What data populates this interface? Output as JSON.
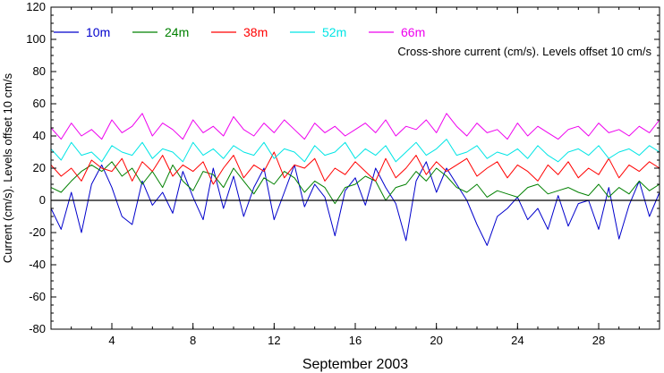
{
  "chart_data": {
    "type": "line",
    "xlabel": "September 2003",
    "ylabel": "Current (cm/s). Levels offset 10 cm/s",
    "annotation": "Cross-shore current (cm/s). Levels offset 10 cm/s",
    "xlim": [
      1,
      31
    ],
    "ylim": [
      -80,
      120
    ],
    "x_ticks": [
      4,
      8,
      12,
      16,
      20,
      24,
      28
    ],
    "x_tick_labels": [
      "4",
      "8",
      "12",
      "16",
      "20",
      "24",
      "28"
    ],
    "y_ticks": [
      -80,
      -60,
      -40,
      -20,
      0,
      20,
      40,
      60,
      80,
      100,
      120
    ],
    "y_tick_labels": [
      "-80",
      "-60",
      "-40",
      "-20",
      "0",
      "20",
      "40",
      "60",
      "80",
      "100",
      "120"
    ],
    "zero_line": 0,
    "grid": false,
    "legend_position": "top-left, horizontal",
    "x_day": [
      1,
      1.5,
      2,
      2.5,
      3,
      3.5,
      4,
      4.5,
      5,
      5.5,
      6,
      6.5,
      7,
      7.5,
      8,
      8.5,
      9,
      9.5,
      10,
      10.5,
      11,
      11.5,
      12,
      12.5,
      13,
      13.5,
      14,
      14.5,
      15,
      15.5,
      16,
      16.5,
      17,
      17.5,
      18,
      18.5,
      19,
      19.5,
      20,
      20.5,
      21,
      21.5,
      22,
      22.5,
      23,
      23.5,
      24,
      24.5,
      25,
      25.5,
      26,
      26.5,
      27,
      27.5,
      28,
      28.5,
      29,
      29.5,
      30,
      30.5,
      31
    ],
    "series": [
      {
        "name": "10m",
        "color": "#0000cc",
        "values": [
          -5,
          -18,
          5,
          -20,
          10,
          22,
          8,
          -10,
          -15,
          12,
          -3,
          5,
          -8,
          18,
          2,
          -12,
          20,
          -5,
          15,
          -10,
          8,
          20,
          -12,
          5,
          22,
          -4,
          10,
          2,
          -22,
          6,
          14,
          -3,
          20,
          8,
          -2,
          -25,
          12,
          24,
          5,
          20,
          10,
          0,
          -15,
          -28,
          -10,
          -5,
          2,
          -12,
          -5,
          -18,
          3,
          -16,
          -2,
          0,
          -18,
          8,
          -24,
          -3,
          12,
          -10,
          5
        ]
      },
      {
        "name": "24m",
        "color": "#008000",
        "values": [
          8,
          5,
          12,
          18,
          22,
          18,
          24,
          15,
          20,
          10,
          18,
          8,
          22,
          12,
          6,
          18,
          16,
          8,
          20,
          12,
          4,
          14,
          10,
          18,
          14,
          5,
          12,
          8,
          -2,
          8,
          10,
          15,
          12,
          0,
          8,
          10,
          18,
          12,
          20,
          15,
          8,
          5,
          10,
          2,
          6,
          4,
          2,
          8,
          10,
          4,
          6,
          8,
          5,
          3,
          10,
          2,
          8,
          4,
          12,
          6,
          10
        ]
      },
      {
        "name": "38m",
        "color": "#ff0000",
        "values": [
          22,
          15,
          20,
          12,
          25,
          20,
          18,
          26,
          12,
          24,
          18,
          28,
          15,
          22,
          18,
          24,
          10,
          20,
          28,
          14,
          22,
          18,
          30,
          14,
          22,
          20,
          26,
          12,
          20,
          16,
          24,
          18,
          12,
          26,
          14,
          20,
          28,
          16,
          24,
          18,
          22,
          26,
          15,
          20,
          24,
          14,
          22,
          18,
          12,
          22,
          16,
          24,
          14,
          20,
          16,
          26,
          14,
          22,
          18,
          24,
          20
        ]
      },
      {
        "name": "52m",
        "color": "#00e5e5",
        "values": [
          32,
          25,
          36,
          28,
          30,
          24,
          34,
          30,
          28,
          36,
          26,
          32,
          30,
          24,
          36,
          28,
          32,
          26,
          34,
          30,
          28,
          36,
          26,
          32,
          30,
          24,
          34,
          28,
          30,
          36,
          26,
          32,
          28,
          34,
          24,
          30,
          36,
          28,
          32,
          38,
          28,
          30,
          34,
          26,
          30,
          28,
          32,
          26,
          34,
          28,
          24,
          30,
          32,
          28,
          34,
          26,
          30,
          32,
          28,
          34,
          30
        ]
      },
      {
        "name": "66m",
        "color": "#ee00ee",
        "values": [
          45,
          38,
          48,
          40,
          44,
          38,
          50,
          42,
          46,
          54,
          40,
          48,
          44,
          38,
          50,
          42,
          46,
          40,
          52,
          44,
          40,
          48,
          42,
          50,
          44,
          38,
          48,
          42,
          46,
          40,
          44,
          48,
          42,
          50,
          40,
          46,
          44,
          50,
          42,
          54,
          46,
          40,
          48,
          42,
          44,
          38,
          48,
          40,
          46,
          42,
          38,
          44,
          46,
          40,
          48,
          42,
          44,
          40,
          46,
          42,
          50
        ]
      }
    ]
  }
}
